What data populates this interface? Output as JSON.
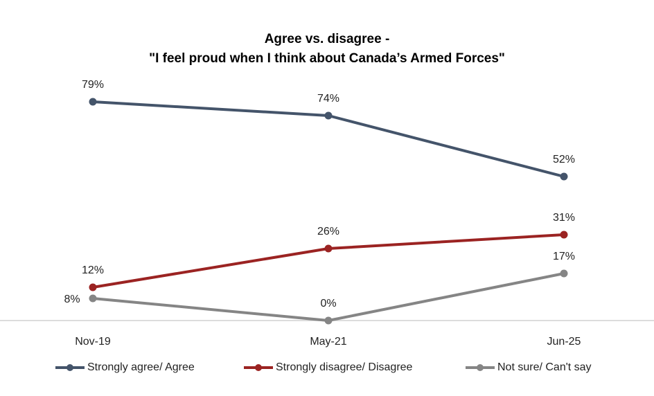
{
  "chart_data": {
    "type": "line",
    "title": [
      "Agree vs. disagree -",
      "\"I feel proud when I think about Canada’s Armed Forces\""
    ],
    "categories": [
      "Nov-19",
      "May-21",
      "Jun-25"
    ],
    "xlabel": "",
    "ylabel": "",
    "ylim": [
      0,
      100
    ],
    "grid": false,
    "legend_position": "bottom",
    "series": [
      {
        "name": "Strongly agree/ Agree",
        "values": [
          79,
          74,
          52
        ],
        "color": "#44546A",
        "labels": [
          "79%",
          "74%",
          "52%"
        ]
      },
      {
        "name": "Strongly disagree/ Disagree",
        "values": [
          12,
          26,
          31
        ],
        "color": "#9B2322",
        "labels": [
          "12%",
          "26%",
          "31%"
        ]
      },
      {
        "name": "Not sure/ Can't say",
        "values": [
          8,
          0,
          17
        ],
        "color": "#858585",
        "labels": [
          "8%",
          "0%",
          "17%"
        ]
      }
    ]
  }
}
